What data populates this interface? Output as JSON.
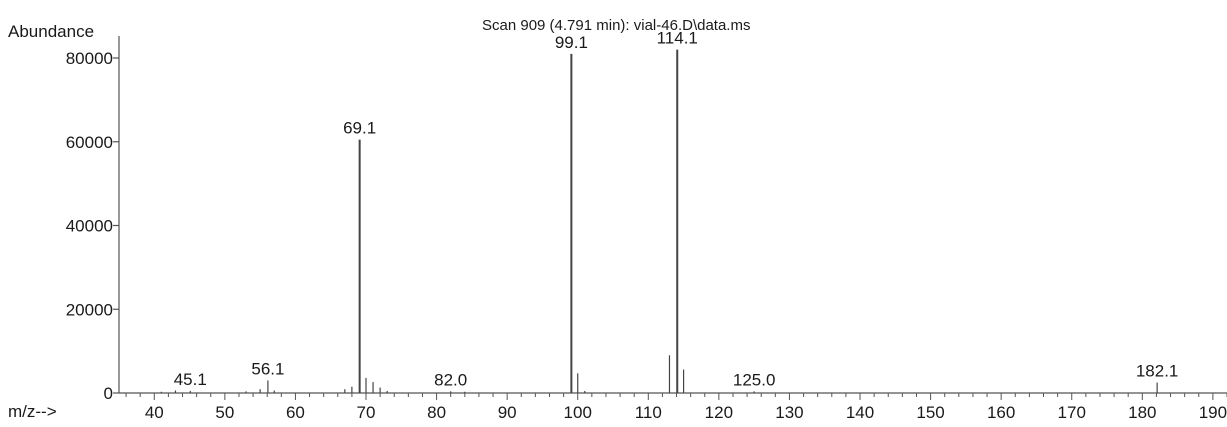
{
  "chart_data": {
    "type": "bar",
    "title": "Scan 909 (4.791 min): vial-46.D\\data.ms",
    "ylabel": "Abundance",
    "xlabel": "m/z-->",
    "xlim": [
      35,
      192
    ],
    "ylim": [
      0,
      85000
    ],
    "x_ticks": [
      40,
      50,
      60,
      70,
      80,
      90,
      100,
      110,
      120,
      130,
      140,
      150,
      160,
      170,
      180,
      190
    ],
    "y_ticks": [
      0,
      20000,
      40000,
      60000,
      80000
    ],
    "peaks": [
      {
        "mz": 41.0,
        "abundance": 300
      },
      {
        "mz": 43.0,
        "abundance": 600
      },
      {
        "mz": 45.1,
        "abundance": 500,
        "label": "45.1"
      },
      {
        "mz": 53.0,
        "abundance": 400
      },
      {
        "mz": 55.0,
        "abundance": 900
      },
      {
        "mz": 56.1,
        "abundance": 3000,
        "label": "56.1"
      },
      {
        "mz": 57.0,
        "abundance": 600
      },
      {
        "mz": 67.0,
        "abundance": 900
      },
      {
        "mz": 68.0,
        "abundance": 1500
      },
      {
        "mz": 69.1,
        "abundance": 60500,
        "label": "69.1"
      },
      {
        "mz": 70.0,
        "abundance": 3600
      },
      {
        "mz": 71.0,
        "abundance": 2600
      },
      {
        "mz": 72.0,
        "abundance": 1300
      },
      {
        "mz": 73.0,
        "abundance": 500
      },
      {
        "mz": 82.0,
        "abundance": 400,
        "label": "82.0"
      },
      {
        "mz": 84.0,
        "abundance": 300
      },
      {
        "mz": 99.1,
        "abundance": 81000,
        "label": "99.1"
      },
      {
        "mz": 100.0,
        "abundance": 4700
      },
      {
        "mz": 101.0,
        "abundance": 500
      },
      {
        "mz": 113.0,
        "abundance": 9000
      },
      {
        "mz": 114.1,
        "abundance": 82000,
        "label": "114.1"
      },
      {
        "mz": 115.0,
        "abundance": 5600
      },
      {
        "mz": 125.0,
        "abundance": 400,
        "label": "125.0"
      },
      {
        "mz": 182.1,
        "abundance": 2500,
        "label": "182.1"
      }
    ]
  }
}
